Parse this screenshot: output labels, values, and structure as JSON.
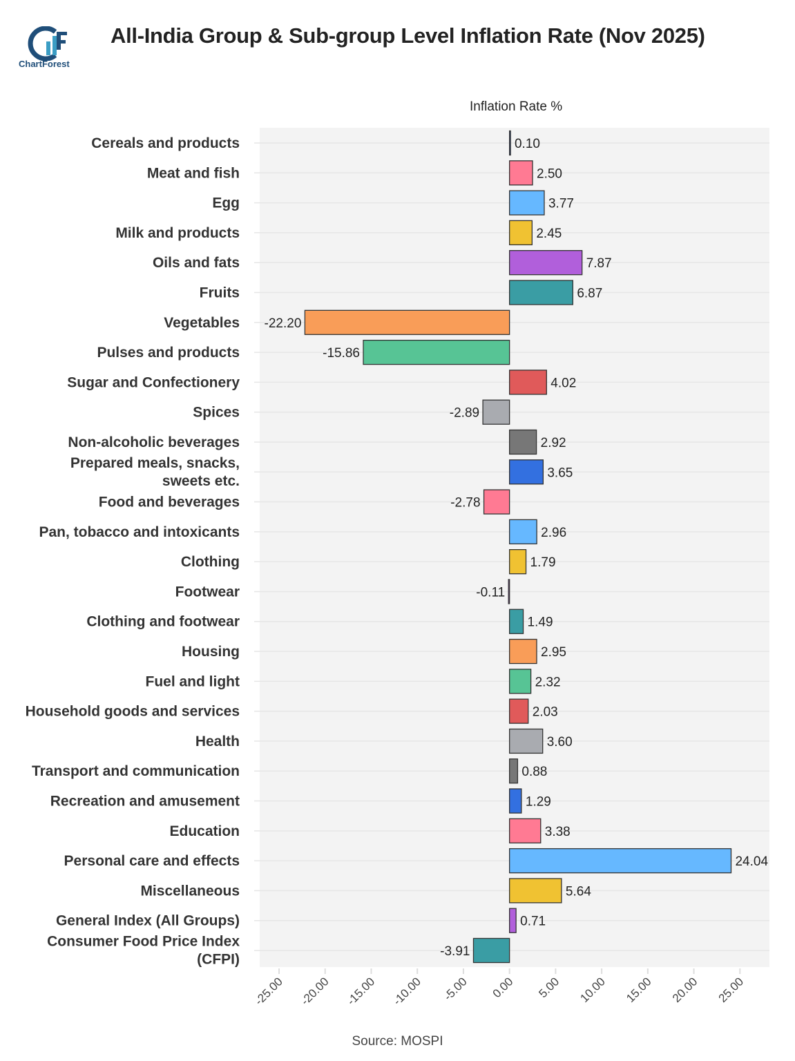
{
  "header": {
    "title": "All-India Group & Sub-group Level Inflation Rate (Nov 2025)",
    "logo_text": "ChartForest"
  },
  "footer": {
    "source": "Source: MOSPI"
  },
  "chart_data": {
    "type": "bar",
    "orientation": "horizontal",
    "title": "All-India Group & Sub-group Level Inflation Rate (Nov 2025)",
    "xlabel": "Inflation Rate %",
    "ylabel": "",
    "xlim": [
      -27.1,
      28.2
    ],
    "xticks": [
      "-25.00",
      "-20.00",
      "-15.00",
      "-10.00",
      "-5.00",
      "0.00",
      "5.00",
      "10.00",
      "15.00",
      "20.00",
      "25.00"
    ],
    "xtick_values": [
      -25,
      -20,
      -15,
      -10,
      -5,
      0,
      5,
      10,
      15,
      20,
      25
    ],
    "grid": true,
    "categories": [
      "Cereals and products",
      "Meat and fish",
      "Egg",
      "Milk and products",
      "Oils and fats",
      "Fruits",
      "Vegetables",
      "Pulses and products",
      "Sugar and Confectionery",
      "Spices",
      "Non-alcoholic beverages",
      "Prepared meals, snacks,\nsweets etc.",
      "Food and beverages",
      "Pan, tobacco and intoxicants",
      "Clothing",
      "Footwear",
      "Clothing and footwear",
      "Housing",
      "Fuel and light",
      "Household goods and services",
      "Health",
      "Transport and communication",
      "Recreation and amusement",
      "Education",
      "Personal care and effects",
      "Miscellaneous",
      "General Index (All Groups)",
      "Consumer Food Price Index\n(CFPI)"
    ],
    "values": [
      0.1,
      2.5,
      3.77,
      2.45,
      7.87,
      6.87,
      -22.2,
      -15.86,
      4.02,
      -2.89,
      2.92,
      3.65,
      -2.78,
      2.96,
      1.79,
      -0.11,
      1.49,
      2.95,
      2.32,
      2.03,
      3.6,
      0.88,
      1.29,
      3.38,
      24.04,
      5.64,
      0.71,
      -3.91
    ],
    "labels": [
      "0.10",
      "2.50",
      "3.77",
      "2.45",
      "7.87",
      "6.87",
      "-22.20",
      "-15.86",
      "4.02",
      "-2.89",
      "2.92",
      "3.65",
      "-2.78",
      "2.96",
      "1.79",
      "-0.11",
      "1.49",
      "2.95",
      "2.32",
      "2.03",
      "3.60",
      "0.88",
      "1.29",
      "3.38",
      "24.04",
      "5.64",
      "0.71",
      "-3.91"
    ],
    "palette": [
      "#3370E0",
      "#FF7A93",
      "#66B8FF",
      "#F0C232",
      "#B15FDB",
      "#3A9DA4",
      "#F99D58",
      "#57C495",
      "#E05A5A",
      "#A9ABB0",
      "#777777"
    ]
  }
}
